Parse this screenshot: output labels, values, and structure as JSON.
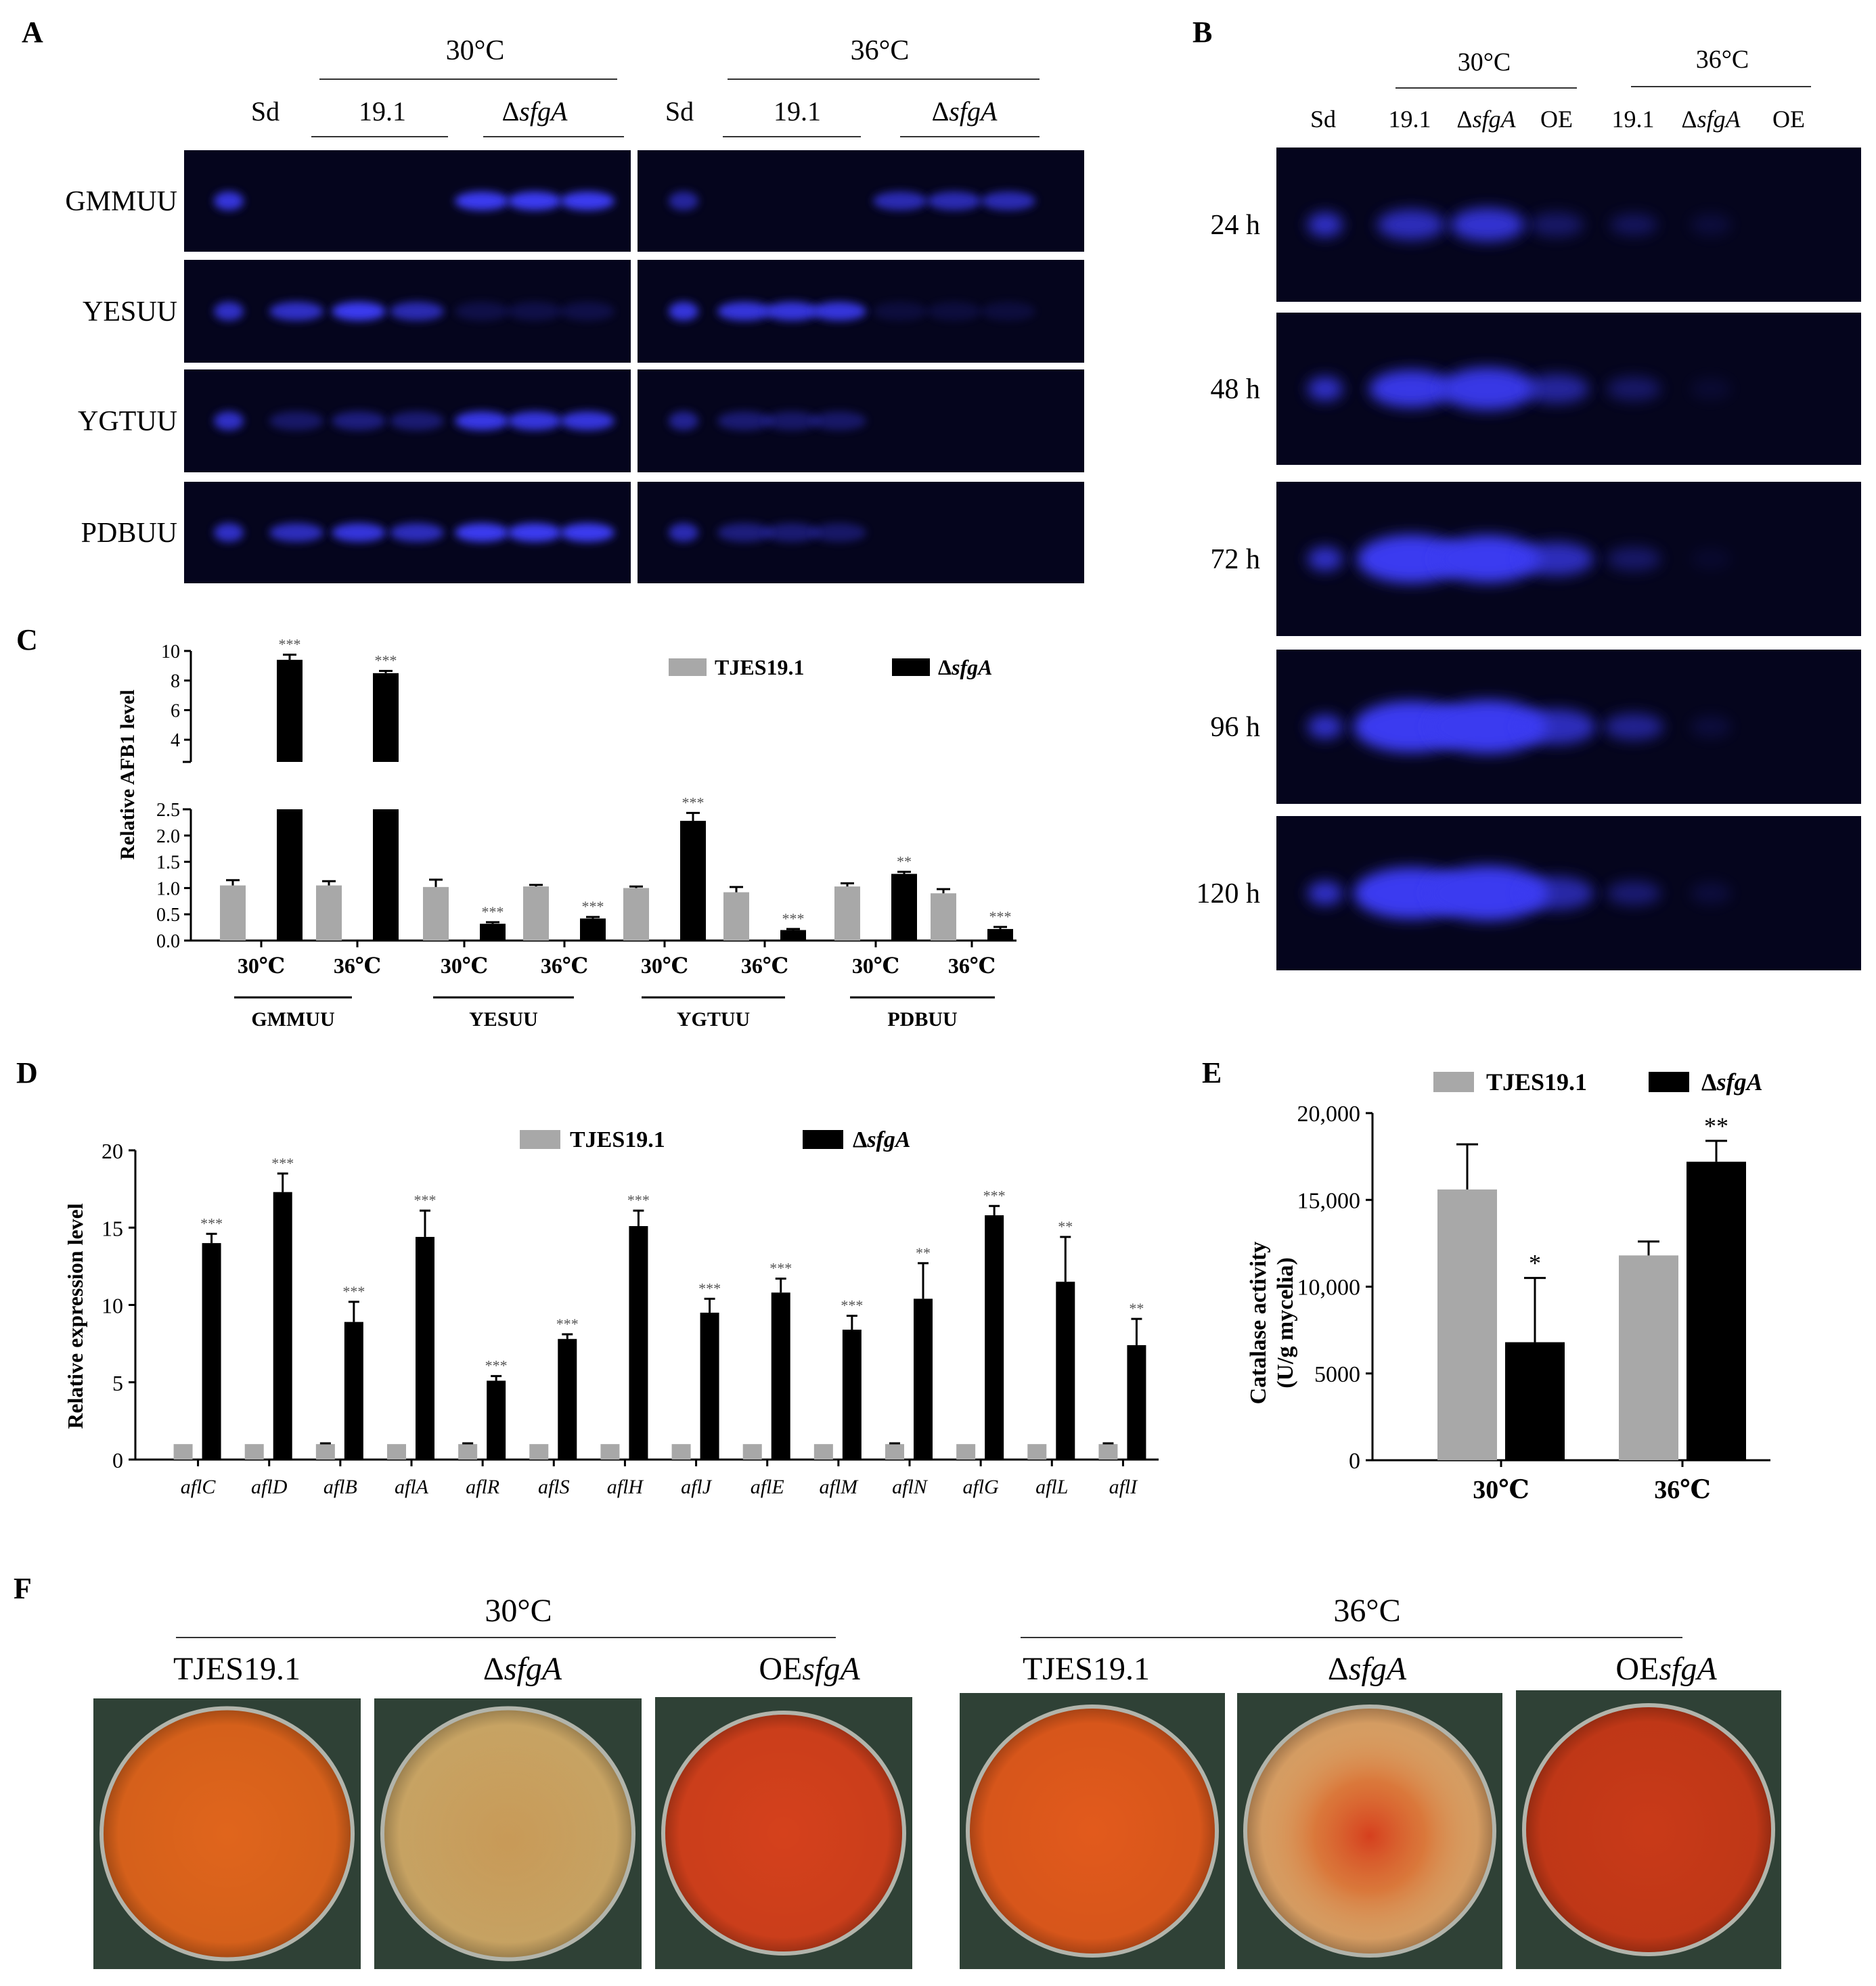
{
  "colors": {
    "gray_bar": "#a8a8a8",
    "black_bar": "#000000",
    "tlc_bg": "#05051d",
    "tlc_band": "#3a3af0",
    "plate_bg": "#2f4136"
  },
  "panel_a": {
    "letter": "A",
    "temps": [
      "30°C",
      "36°C"
    ],
    "headers": {
      "sd": "Sd",
      "wt": "19.1",
      "mut_delta": "Δ",
      "mut_gene": "sfgA"
    },
    "media": [
      "GMMUU",
      "YESUU",
      "YGTUU",
      "PDBUU"
    ]
  },
  "panel_b": {
    "letter": "B",
    "temps": [
      "30°C",
      "36°C"
    ],
    "lanes": {
      "sd": "Sd",
      "wt": "19.1",
      "mut_delta": "Δ",
      "mut_gene": "sfgA",
      "oe": "OE"
    },
    "times": [
      "24 h",
      "48 h",
      "72 h",
      "96 h",
      "120 h"
    ]
  },
  "legend": {
    "wt": "TJES19.1",
    "mut_delta": "Δ",
    "mut_gene": "sfgA"
  },
  "panel_c": {
    "letter": "C"
  },
  "panel_d": {
    "letter": "D"
  },
  "panel_e": {
    "letter": "E"
  },
  "panel_f": {
    "letter": "F",
    "temps": [
      "30°C",
      "36°C"
    ],
    "strains": {
      "wt": "TJES19.1",
      "mut_delta": "Δ",
      "mut_gene": "sfgA",
      "oe_prefix": "OE",
      "oe_gene": "sfgA"
    },
    "plate_colors": [
      "#e0651c",
      "#d2ad6a",
      "#d5411c",
      "#e25a1c",
      "#dea266",
      "#c93a18"
    ]
  },
  "chart_data": [
    {
      "id": "C",
      "type": "bar",
      "ylabel": "Relative AFB1 level",
      "axis_break": {
        "lower": [
          0,
          2.5
        ],
        "upper": [
          2.5,
          10
        ]
      },
      "yticks_lower": [
        "0.0",
        "0.5",
        "1.0",
        "1.5",
        "2.0",
        "2.5"
      ],
      "yticks_upper": [
        "4",
        "6",
        "8",
        "10"
      ],
      "groups": [
        "GMMUU",
        "YESUU",
        "YGTUU",
        "PDBUU"
      ],
      "categories": [
        "30℃",
        "36℃",
        "30℃",
        "36℃",
        "30℃",
        "36℃",
        "30℃",
        "36℃"
      ],
      "series": [
        {
          "name": "TJES19.1",
          "values": [
            1.05,
            1.05,
            1.02,
            1.03,
            1.0,
            0.92,
            1.03,
            0.9
          ],
          "errors": [
            0.1,
            0.08,
            0.14,
            0.03,
            0.03,
            0.1,
            0.06,
            0.08
          ]
        },
        {
          "name": "ΔsfgA",
          "values": [
            9.4,
            8.5,
            0.32,
            0.42,
            2.28,
            0.2,
            1.27,
            0.22
          ],
          "errors": [
            0.35,
            0.15,
            0.03,
            0.03,
            0.15,
            0.02,
            0.04,
            0.04
          ],
          "significance": [
            "***",
            "***",
            "***",
            "***",
            "***",
            "***",
            "**",
            "***"
          ]
        }
      ]
    },
    {
      "id": "D",
      "type": "bar",
      "ylabel": "Relative expression level",
      "ylim": [
        0,
        20
      ],
      "yticks": [
        "0",
        "5",
        "10",
        "15",
        "20"
      ],
      "categories": [
        "aflC",
        "aflD",
        "aflB",
        "aflA",
        "aflR",
        "aflS",
        "aflH",
        "aflJ",
        "aflE",
        "aflM",
        "aflN",
        "aflG",
        "aflL",
        "aflI"
      ],
      "series": [
        {
          "name": "TJES19.1",
          "values": [
            1,
            1,
            1,
            1,
            1,
            1,
            1,
            1,
            1,
            1,
            1,
            1,
            1,
            1
          ],
          "errors": [
            0,
            0,
            0.05,
            0,
            0.05,
            0,
            0,
            0,
            0,
            0,
            0.05,
            0,
            0,
            0.05
          ]
        },
        {
          "name": "ΔsfgA",
          "values": [
            14,
            17.3,
            8.9,
            14.4,
            5.1,
            7.8,
            15.1,
            9.5,
            10.8,
            8.4,
            10.4,
            15.8,
            11.5,
            7.4
          ],
          "errors": [
            0.6,
            1.2,
            1.3,
            1.7,
            0.3,
            0.3,
            1.0,
            0.9,
            0.9,
            0.9,
            2.3,
            0.6,
            2.9,
            1.7
          ],
          "significance": [
            "***",
            "***",
            "***",
            "***",
            "***",
            "***",
            "***",
            "***",
            "***",
            "***",
            "**",
            "***",
            "**",
            "**"
          ]
        }
      ]
    },
    {
      "id": "E",
      "type": "bar",
      "ylabel": "Catalase activity",
      "ylabel2": "(U/g mycelia)",
      "ylim": [
        0,
        20000
      ],
      "yticks": [
        "0",
        "5000",
        "10,000",
        "15,000",
        "20,000"
      ],
      "categories": [
        "30℃",
        "36℃"
      ],
      "series": [
        {
          "name": "TJES19.1",
          "values": [
            15600,
            11800
          ],
          "errors": [
            2600,
            800
          ]
        },
        {
          "name": "ΔsfgA",
          "values": [
            6800,
            17200
          ],
          "errors": [
            3700,
            1200
          ],
          "significance": [
            "*",
            "**"
          ]
        }
      ]
    }
  ]
}
